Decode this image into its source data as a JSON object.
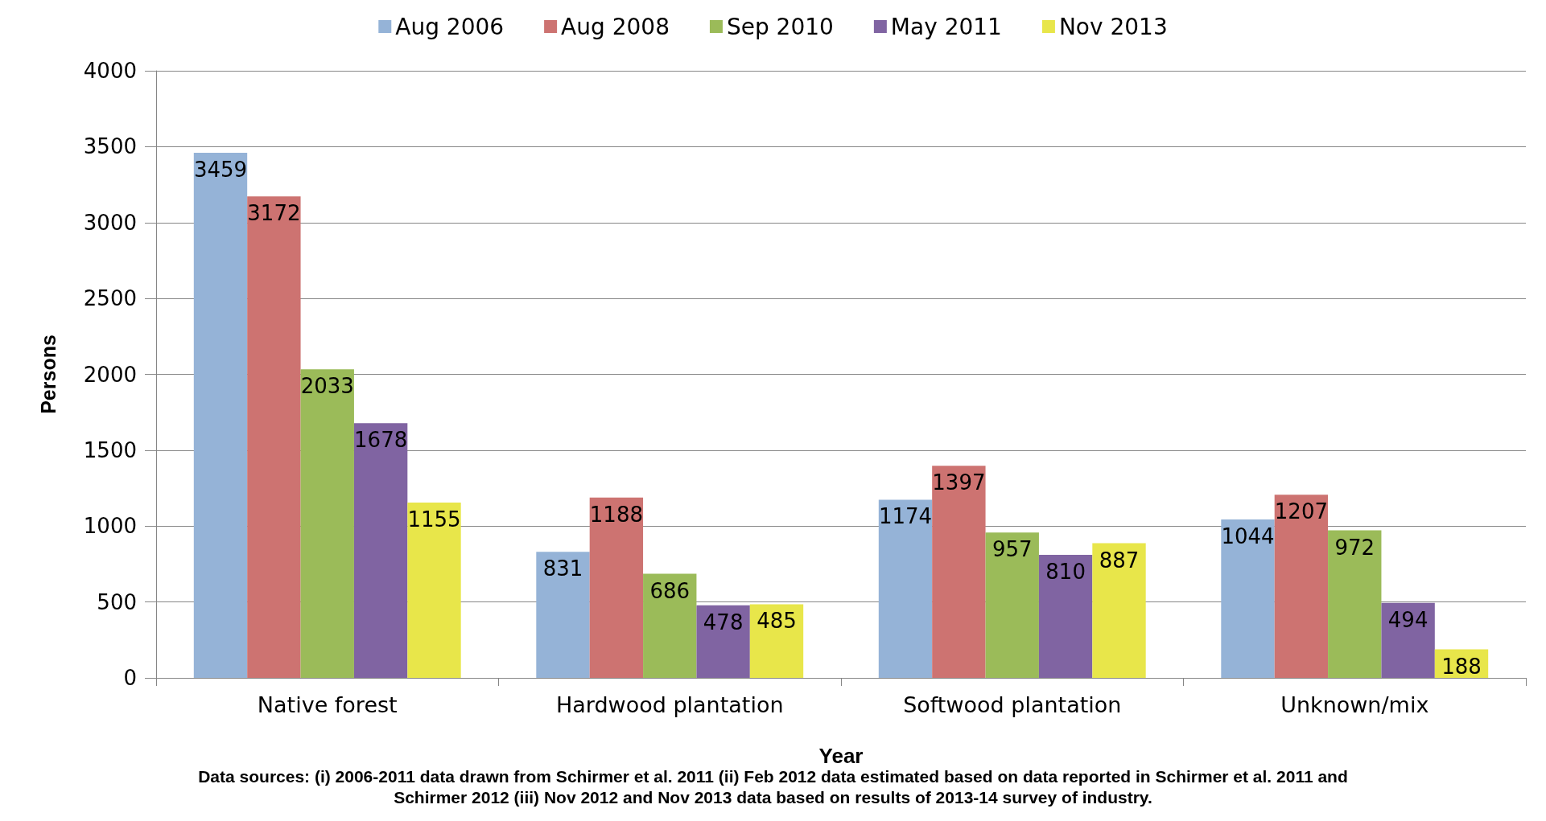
{
  "chart_data": {
    "type": "bar",
    "categories": [
      "Native forest",
      "Hardwood plantation",
      "Softwood plantation",
      "Unknown/mix"
    ],
    "series": [
      {
        "name": "Aug 2006",
        "color": "#95b3d7",
        "values": [
          3459,
          831,
          1174,
          1044
        ]
      },
      {
        "name": "Aug 2008",
        "color": "#cd7371",
        "values": [
          3172,
          1188,
          1397,
          1207
        ]
      },
      {
        "name": "Sep 2010",
        "color": "#9bbb59",
        "values": [
          2033,
          686,
          957,
          972
        ]
      },
      {
        "name": "May 2011",
        "color": "#8064a2",
        "values": [
          1678,
          478,
          810,
          494
        ]
      },
      {
        "name": "Nov 2013",
        "color": "#e8e64a",
        "values": [
          1155,
          485,
          887,
          188
        ]
      }
    ],
    "xlabel": "Year",
    "ylabel": "Persons",
    "ylim": [
      0,
      4000
    ],
    "yticks": [
      0,
      500,
      1000,
      1500,
      2000,
      2500,
      3000,
      3500,
      4000
    ],
    "grid": "y",
    "legend": "top",
    "data_labels": true,
    "annotations": [
      "Data sources: (i) 2006-2011 data drawn from Schirmer et al. 2011 (ii) Feb 2012 data estimated based on data reported in Schirmer et al. 2011 and Schirmer 2012 (iii) Nov 2012 and Nov 2013 data based on results of 2013-14 survey of industry."
    ]
  }
}
